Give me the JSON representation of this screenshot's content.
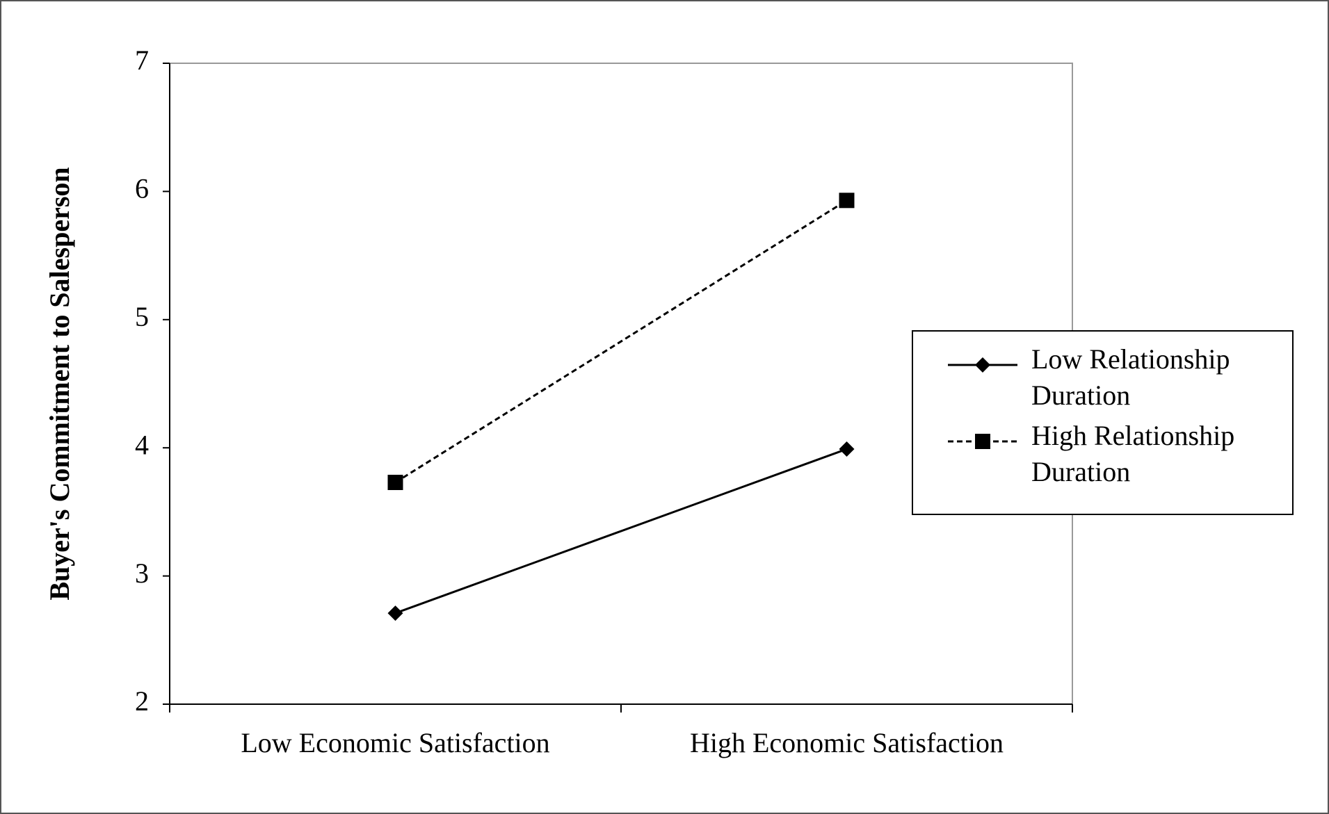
{
  "chart_data": {
    "type": "line",
    "y_label": "Buyer's Commitment to Salesperson",
    "categories": [
      "Low Economic Satisfaction",
      "High Economic Satisfaction"
    ],
    "series": [
      {
        "name": "Low Relationship Duration",
        "color": "#000000",
        "line_style": "solid",
        "marker": "diamond",
        "values": [
          2.71,
          3.99
        ]
      },
      {
        "name": "High Relationship Duration",
        "color": "#000000",
        "line_style": "dashed",
        "marker": "square",
        "values": [
          3.73,
          5.93
        ]
      }
    ],
    "ylim": [
      2,
      7
    ],
    "yticks": [
      2,
      3,
      4,
      5,
      6,
      7
    ],
    "grid": false
  }
}
